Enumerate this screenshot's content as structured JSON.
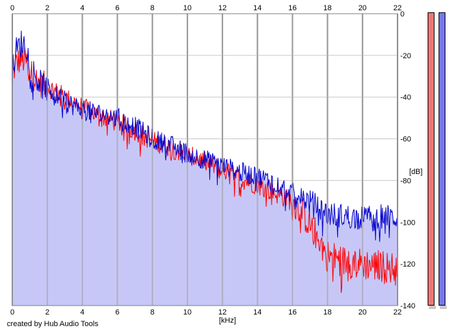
{
  "chart_data": {
    "type": "area",
    "xlabel": "[kHz]",
    "ylabel": "[dB]",
    "xlim": [
      0,
      22
    ],
    "ylim": [
      -140,
      0
    ],
    "x_ticks": [
      "0",
      "2",
      "4",
      "6",
      "8",
      "10",
      "12",
      "14",
      "16",
      "18",
      "20",
      "22"
    ],
    "y_ticks": [
      "0",
      "-20",
      "-40",
      "-60",
      "-80",
      "-100",
      "-120",
      "-140"
    ],
    "grid": true,
    "series": [
      {
        "color": "#ff0000",
        "x": [
          0,
          0.2,
          0.5,
          0.8,
          1,
          1.5,
          2,
          3,
          4,
          5,
          6,
          7,
          8,
          9,
          10,
          11,
          12,
          13,
          14,
          15,
          16,
          16.5,
          17,
          17.5,
          18,
          19,
          20,
          21,
          22
        ],
        "values": [
          -30,
          -24,
          -22,
          -23,
          -28,
          -33,
          -35,
          -40,
          -45,
          -49,
          -52,
          -56,
          -61,
          -64,
          -68,
          -71,
          -75,
          -79,
          -82,
          -86,
          -90,
          -94,
          -101,
          -108,
          -116,
          -119,
          -120,
          -121,
          -122
        ]
      },
      {
        "color": "#0000cc",
        "x": [
          0,
          0.2,
          0.5,
          0.8,
          1,
          1.5,
          2,
          3,
          4,
          5,
          6,
          7,
          8,
          9,
          10,
          11,
          12,
          13,
          14,
          15,
          16,
          17,
          18,
          19,
          20,
          21,
          22
        ],
        "values": [
          -28,
          -18,
          -14,
          -15,
          -24,
          -33,
          -36,
          -42,
          -46,
          -48,
          -50,
          -54,
          -60,
          -63,
          -67,
          -70,
          -73,
          -76,
          -78,
          -81,
          -86,
          -90,
          -96,
          -97,
          -98,
          -97,
          -98
        ]
      }
    ],
    "fill_color": "#c7c7f7"
  },
  "meters": {
    "left_color": "#ee7777",
    "right_color": "#7777ee"
  },
  "footer": {
    "credit": "created by Hub Audio Tools"
  }
}
